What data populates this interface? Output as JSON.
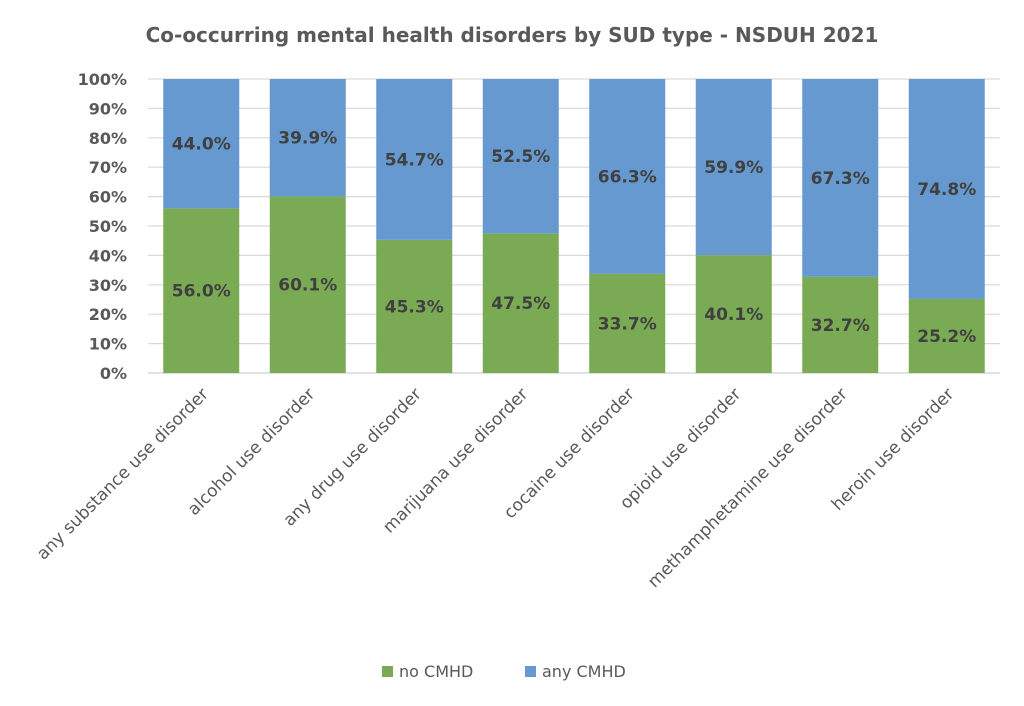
{
  "chart_data": {
    "type": "bar",
    "stacked": true,
    "title": "Co-occurring mental health disorders by SUD type - NSDUH 2021",
    "categories": [
      "any substance use disorder",
      "alcohol use disorder",
      "any drug use disorder",
      "marijuana use disorder",
      "cocaine use disorder",
      "opioid use disorder",
      "methamphetamine use disorder",
      "heroin use disorder"
    ],
    "series": [
      {
        "name": "no CMHD",
        "color": "#7aab54",
        "values": [
          56.0,
          60.1,
          45.3,
          47.5,
          33.7,
          40.1,
          32.7,
          25.2
        ],
        "labels": [
          "56.0%",
          "60.1%",
          "45.3%",
          "47.5%",
          "33.7%",
          "40.1%",
          "32.7%",
          "25.2%"
        ]
      },
      {
        "name": "any CMHD",
        "color": "#6699cf",
        "values": [
          44.0,
          39.9,
          54.7,
          52.5,
          66.3,
          59.9,
          67.3,
          74.8
        ],
        "labels": [
          "44.0%",
          "39.9%",
          "54.7%",
          "52.5%",
          "66.3%",
          "59.9%",
          "67.3%",
          "74.8%"
        ]
      }
    ],
    "ylim": [
      0,
      100
    ],
    "yticks": [
      "0%",
      "10%",
      "20%",
      "30%",
      "40%",
      "50%",
      "60%",
      "70%",
      "80%",
      "90%",
      "100%"
    ],
    "grid": true,
    "legend_position": "bottom"
  }
}
